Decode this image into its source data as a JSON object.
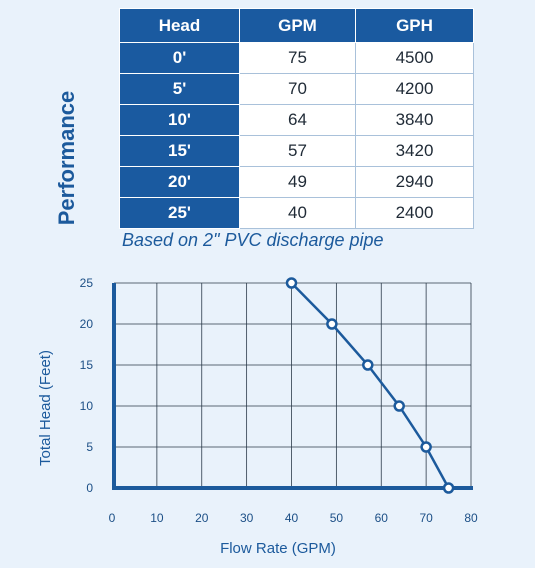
{
  "performance_label": "Performance",
  "table": {
    "headers": [
      "Head",
      "GPM",
      "GPH"
    ],
    "rows": [
      [
        "0'",
        "75",
        "4500"
      ],
      [
        "5'",
        "70",
        "4200"
      ],
      [
        "10'",
        "64",
        "3840"
      ],
      [
        "15'",
        "57",
        "3420"
      ],
      [
        "20'",
        "49",
        "2940"
      ],
      [
        "25'",
        "40",
        "2400"
      ]
    ]
  },
  "caption": "Based on 2\" PVC discharge pipe",
  "chart_data": {
    "type": "line",
    "xlabel": "Flow Rate (GPM)",
    "ylabel": "Total Head (Feet)",
    "xlim": [
      0,
      80
    ],
    "ylim": [
      0,
      25
    ],
    "xticks": [
      0,
      10,
      20,
      30,
      40,
      50,
      60,
      70,
      80
    ],
    "yticks": [
      0,
      5,
      10,
      15,
      20,
      25
    ],
    "grid": true,
    "series": [
      {
        "x": [
          75,
          70,
          64,
          57,
          49,
          40
        ],
        "y": [
          0,
          5,
          10,
          15,
          20,
          25
        ],
        "marker": "open-circle",
        "color": "#1c5a9c"
      }
    ]
  },
  "colors": {
    "primary": "#1a5aa0",
    "background": "#e9f2fb"
  }
}
